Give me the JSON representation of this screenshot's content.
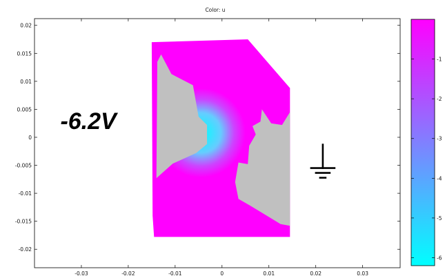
{
  "chart_data": {
    "type": "heatmap",
    "title": "Color: u",
    "xlabel": "",
    "ylabel": "",
    "xlim": [
      -0.04,
      0.038
    ],
    "ylim": [
      -0.0233,
      0.0212
    ],
    "x_ticks": [
      -0.03,
      -0.02,
      -0.01,
      0,
      0.01,
      0.02,
      0.03
    ],
    "x_tick_labels": [
      "-0.03",
      "-0.02",
      "-0.01",
      "0",
      "0.01",
      "0.02",
      "0.03"
    ],
    "y_ticks": [
      0.02,
      0.015,
      0.01,
      0.005,
      0,
      -0.005,
      -0.01,
      -0.015,
      -0.02
    ],
    "y_tick_labels": [
      "0.02",
      "0.015",
      "0.01",
      "0.005",
      "0",
      "-0.005",
      "-0.01",
      "-0.015",
      "-0.02"
    ],
    "grid": false,
    "colormap": [
      "#00ffff",
      "#ff00ff"
    ],
    "colorbar": {
      "range": [
        -6.2,
        0
      ],
      "ticks": [
        -1,
        -2,
        -3,
        -4,
        -5,
        -6
      ],
      "tick_labels": [
        "-1",
        "-2",
        "-3",
        "-4",
        "-5",
        "-6"
      ]
    },
    "domain_outline": [
      [
        -0.015,
        0.017
      ],
      [
        0.0055,
        0.0175
      ],
      [
        0.0145,
        0.0088
      ],
      [
        0.0145,
        -0.0178
      ],
      [
        -0.0145,
        -0.0178
      ],
      [
        -0.0148,
        -0.014
      ]
    ],
    "electrode_left": {
      "potential_label": "-6.2V",
      "potential_value": -6.2,
      "outline": [
        [
          -0.013,
          0.0148
        ],
        [
          -0.0108,
          0.0113
        ],
        [
          -0.0062,
          0.0093
        ],
        [
          -0.005,
          0.0037
        ],
        [
          -0.0032,
          0.0022
        ],
        [
          -0.0032,
          -0.0012
        ],
        [
          -0.0055,
          -0.0028
        ],
        [
          -0.0105,
          -0.0047
        ],
        [
          -0.014,
          -0.0073
        ],
        [
          -0.0138,
          0.0135
        ]
      ]
    },
    "electrode_right": {
      "potential_label": "ground",
      "potential_value": 0,
      "outline": [
        [
          0.0085,
          0.005
        ],
        [
          0.0105,
          0.0025
        ],
        [
          0.0128,
          0.0022
        ],
        [
          0.0145,
          0.0045
        ],
        [
          0.0145,
          -0.0158
        ],
        [
          0.0125,
          -0.0155
        ],
        [
          0.006,
          -0.0122
        ],
        [
          0.0035,
          -0.011
        ],
        [
          0.0028,
          -0.008
        ],
        [
          0.0035,
          -0.0045
        ],
        [
          0.0055,
          -0.0048
        ],
        [
          0.0058,
          -0.0015
        ],
        [
          0.0072,
          0.0005
        ],
        [
          0.0065,
          0.002
        ],
        [
          0.0082,
          0.0028
        ]
      ]
    },
    "annotations": [
      {
        "text": "-6.2V",
        "x": -0.0285,
        "y": 0.0015
      },
      {
        "symbol": "ground",
        "x": 0.0215,
        "y": -0.0055
      }
    ]
  }
}
